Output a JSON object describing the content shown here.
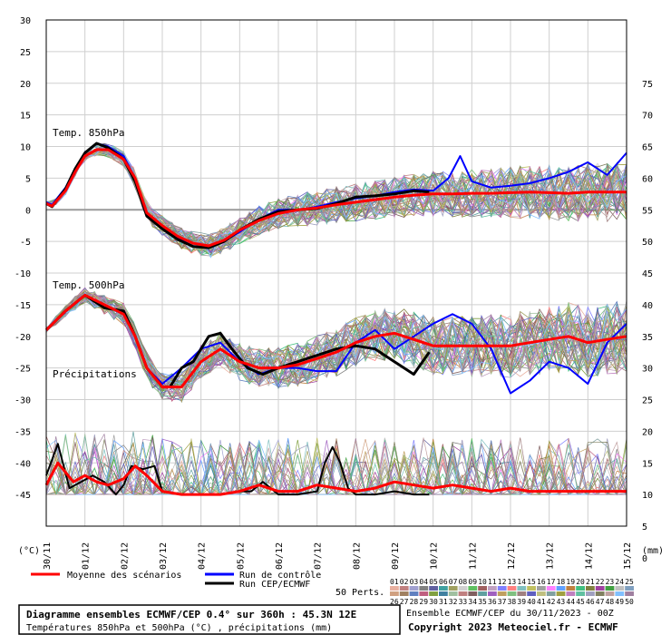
{
  "chart_data": {
    "type": "line",
    "x": [
      "30/11",
      "01/12",
      "02/12",
      "03/12",
      "04/12",
      "05/12",
      "06/12",
      "07/12",
      "08/12",
      "09/12",
      "10/12",
      "11/12",
      "12/12",
      "13/12",
      "14/12",
      "15/12"
    ],
    "left_axis": {
      "unit": "(°C)",
      "ylim": [
        -50,
        30
      ],
      "ticks": [
        30,
        25,
        20,
        15,
        10,
        5,
        0,
        -5,
        -10,
        -15,
        -20,
        -25,
        -30,
        -35,
        -40,
        -45
      ]
    },
    "right_axis": {
      "unit": "(mm)",
      "ylim": [
        -5,
        75
      ],
      "ticks": [
        75,
        70,
        65,
        60,
        55,
        50,
        45,
        40,
        35,
        30,
        25,
        20,
        15,
        10,
        5,
        0
      ]
    },
    "panel_labels": {
      "t850": "Temp. 850hPa",
      "t500": "Temp. 500hPa",
      "precip": "Précipitations"
    },
    "grid": true,
    "series": [
      {
        "key": "t850_mean",
        "color": "#ff0000",
        "width": 3,
        "x": [
          0,
          0.15,
          0.5,
          0.75,
          1,
          1.3,
          1.6,
          2,
          2.3,
          2.6,
          3,
          3.4,
          3.8,
          4.2,
          4.6,
          5,
          5.5,
          6,
          6.5,
          7,
          7.5,
          8,
          8.5,
          9,
          9.5,
          10,
          10.5,
          11,
          11.5,
          12,
          12.5,
          13,
          13.5,
          14,
          14.5,
          15
        ],
        "y": [
          1,
          0.6,
          3,
          6,
          8.5,
          9.5,
          9.5,
          8,
          5,
          -0.5,
          -2.5,
          -4.2,
          -5.3,
          -5.7,
          -4.8,
          -3.2,
          -1.7,
          -0.6,
          0,
          0.3,
          0.8,
          1.2,
          1.6,
          2,
          2.3,
          2.5,
          2.5,
          2.6,
          2.6,
          2.7,
          2.8,
          2.7,
          2.6,
          2.8,
          2.8,
          2.8
        ]
      },
      {
        "key": "t850_control",
        "color": "#0000ff",
        "width": 2,
        "x": [
          0,
          0.15,
          0.5,
          0.75,
          1,
          1.3,
          1.6,
          2,
          2.3,
          2.6,
          3,
          3.4,
          3.8,
          4.2,
          4.6,
          5,
          5.5,
          6,
          6.5,
          7,
          7.5,
          8,
          8.5,
          9,
          9.5,
          10,
          10.4,
          10.7,
          11,
          11.5,
          12,
          12.5,
          13,
          13.5,
          14,
          14.5,
          15
        ],
        "y": [
          1.2,
          0.8,
          3.5,
          6.5,
          9,
          10.5,
          10,
          8.5,
          5,
          -0.5,
          -3,
          -4.5,
          -5.8,
          -6,
          -5,
          -3.5,
          -1.5,
          0,
          0,
          0.5,
          1.2,
          1.8,
          2.2,
          2.8,
          3.2,
          3,
          5,
          8.5,
          4.5,
          3.5,
          3.8,
          4.2,
          5,
          6,
          7.5,
          5.5,
          9
        ]
      },
      {
        "key": "t850_oper",
        "color": "#000000",
        "width": 3,
        "x": [
          0,
          0.15,
          0.5,
          0.75,
          1,
          1.3,
          1.6,
          2,
          2.3,
          2.6,
          3,
          3.4,
          3.8,
          4.2,
          4.6,
          5,
          5.5,
          6,
          6.5,
          7,
          7.5,
          8,
          8.5,
          9,
          9.5,
          9.9
        ],
        "y": [
          1,
          0.5,
          3.3,
          6.5,
          9,
          10.5,
          9.8,
          8,
          4.5,
          -1,
          -3,
          -4.7,
          -5.8,
          -6,
          -5,
          -3.2,
          -1.5,
          -0.3,
          0,
          0.2,
          1,
          2,
          2.2,
          2.5,
          3,
          2.8
        ]
      },
      {
        "key": "t500_mean",
        "color": "#ff0000",
        "width": 3,
        "x": [
          0,
          0.5,
          1,
          1.5,
          2,
          2.3,
          2.6,
          3,
          3.5,
          4,
          4.5,
          5,
          5.5,
          6,
          6.5,
          7,
          7.5,
          8,
          8.5,
          9,
          9.5,
          10,
          10.5,
          11,
          11.5,
          12,
          12.5,
          13,
          13.5,
          14,
          14.5,
          15
        ],
        "y": [
          -19,
          -16,
          -13.5,
          -15,
          -16.5,
          -20,
          -25,
          -28,
          -28,
          -24,
          -22,
          -24,
          -25,
          -25,
          -24.5,
          -23.5,
          -22.5,
          -21,
          -20,
          -19.5,
          -20.5,
          -21.5,
          -21.5,
          -21.5,
          -21.5,
          -21.5,
          -21,
          -20.5,
          -20,
          -21,
          -20.5,
          -20
        ]
      },
      {
        "key": "t500_control",
        "color": "#0000ff",
        "width": 2,
        "x": [
          0,
          0.5,
          1,
          1.5,
          2,
          2.3,
          2.6,
          3,
          3.5,
          4,
          4.5,
          5,
          5.5,
          6,
          6.5,
          7,
          7.5,
          8,
          8.5,
          9,
          9.5,
          10,
          10.5,
          11,
          11.5,
          12,
          12.5,
          13,
          13.5,
          14,
          14.5,
          15
        ],
        "y": [
          -19,
          -16,
          -13.5,
          -15,
          -16.5,
          -20,
          -25,
          -27.5,
          -25,
          -22,
          -21,
          -24,
          -26,
          -25,
          -25,
          -25.5,
          -25.5,
          -21,
          -19,
          -22,
          -20,
          -18,
          -16.5,
          -18,
          -22,
          -29,
          -27,
          -24,
          -25,
          -27.5,
          -21,
          -18
        ]
      },
      {
        "key": "t500_oper",
        "color": "#000000",
        "width": 3,
        "x": [
          0,
          0.5,
          1,
          1.5,
          2,
          2.3,
          2.6,
          3,
          3.2,
          3.5,
          3.8,
          4.2,
          4.5,
          4.8,
          5.2,
          5.6,
          6,
          6.5,
          7,
          7.5,
          8,
          8.5,
          9,
          9.5,
          9.9
        ],
        "y": [
          -19,
          -16,
          -13.5,
          -15.5,
          -16,
          -20,
          -25,
          -28,
          -28,
          -25,
          -24,
          -20,
          -19.5,
          -22,
          -25,
          -26,
          -25,
          -24,
          -23,
          -22,
          -21.5,
          -22,
          -24,
          -26,
          -22.5
        ]
      },
      {
        "key": "precip_mean",
        "color": "#ff0000",
        "width": 3,
        "x": [
          0,
          0.3,
          0.7,
          1,
          1.3,
          1.6,
          2,
          2.3,
          2.6,
          3,
          3.5,
          4,
          4.5,
          5,
          5.5,
          6,
          6.5,
          7,
          7.5,
          8,
          8.5,
          9,
          9.5,
          10,
          10.5,
          11,
          11.5,
          12,
          12.5,
          13,
          13.5,
          14,
          14.5,
          15
        ],
        "y": [
          -43.5,
          -40,
          -43,
          -42,
          -43,
          -43.5,
          -42.5,
          -40.5,
          -42,
          -44.5,
          -45,
          -45,
          -45,
          -44.5,
          -43.5,
          -44.5,
          -44.5,
          -43.5,
          -44,
          -44.5,
          -44,
          -43,
          -43.5,
          -44,
          -43.5,
          -44,
          -44.5,
          -44,
          -44.5,
          -44.5,
          -44.5,
          -44.5,
          -44.5,
          -44.5
        ]
      },
      {
        "key": "precip_oper",
        "color": "#000000",
        "width": 2,
        "x": [
          0,
          0.3,
          0.6,
          0.9,
          1.2,
          1.5,
          1.8,
          2,
          2.2,
          2.5,
          2.8,
          3,
          3.5,
          4,
          4.5,
          5,
          5.3,
          5.6,
          6,
          6.5,
          7,
          7.2,
          7.4,
          7.6,
          7.8,
          8,
          8.5,
          9,
          9.5,
          9.9
        ],
        "y": [
          -42,
          -37,
          -44,
          -43,
          -42,
          -43,
          -45,
          -43.5,
          -40.5,
          -41,
          -40.5,
          -44.5,
          -45,
          -45,
          -45,
          -44.5,
          -44.5,
          -43,
          -45,
          -45,
          -44.5,
          -40,
          -37.5,
          -40,
          -44,
          -45,
          -45,
          -44.5,
          -45,
          -45
        ]
      }
    ],
    "legend": [
      {
        "label": "Moyenne des scénarios",
        "color": "#ff0000"
      },
      {
        "label": "Run de contrôle",
        "color": "#0000ff"
      },
      {
        "label": "Run CEP/ECMWF",
        "color": "#000000"
      }
    ],
    "perts_label": "50 Perts.",
    "perts_numbers": [
      "01",
      "02",
      "03",
      "04",
      "05",
      "06",
      "07",
      "08",
      "09",
      "10",
      "11",
      "12",
      "13",
      "14",
      "15",
      "16",
      "17",
      "18",
      "19",
      "20",
      "21",
      "22",
      "23",
      "24",
      "25",
      "26",
      "27",
      "28",
      "29",
      "30",
      "31",
      "32",
      "33",
      "34",
      "35",
      "36",
      "37",
      "38",
      "39",
      "40",
      "41",
      "42",
      "43",
      "44",
      "45",
      "46",
      "47",
      "48",
      "49",
      "50"
    ],
    "perts_colors": [
      "#e8b0a0",
      "#c08080",
      "#a0a0d0",
      "#808080",
      "#6060a0",
      "#40a0a0",
      "#a0a060",
      "#d0d0d0",
      "#60c060",
      "#a06060",
      "#c0a0c0",
      "#8080ff",
      "#ff8080",
      "#80c0c0",
      "#c0c060",
      "#a0a0a0",
      "#ff80ff",
      "#60a0ff",
      "#c08040",
      "#40c080",
      "#808040",
      "#a040a0",
      "#40a040",
      "#c0c0c0",
      "#80a0c0",
      "#d0a080",
      "#a08060",
      "#6080c0",
      "#c06080",
      "#80a040",
      "#4080a0",
      "#a0c0a0",
      "#c08080",
      "#806060",
      "#60a0a0",
      "#a060c0",
      "#c0a060",
      "#80c080",
      "#a08080",
      "#6060c0",
      "#c0c080",
      "#80a0a0",
      "#a0a040",
      "#c080c0",
      "#60c0a0",
      "#a0a0c0",
      "#808060",
      "#c0a0a0",
      "#80c0ff",
      "#a080a0"
    ],
    "title": "Diagramme ensembles ECMWF/CEP 0.4° sur 360h : 45.3N 12E",
    "subtitle": "Températures 850hPa et 500hPa (°C) , précipitations (mm)",
    "run_info": "Ensemble ECMWF/CEP du 30/11/2023 - 00Z",
    "copyright": "Copyright 2023 Meteociel.fr - ECMWF"
  }
}
